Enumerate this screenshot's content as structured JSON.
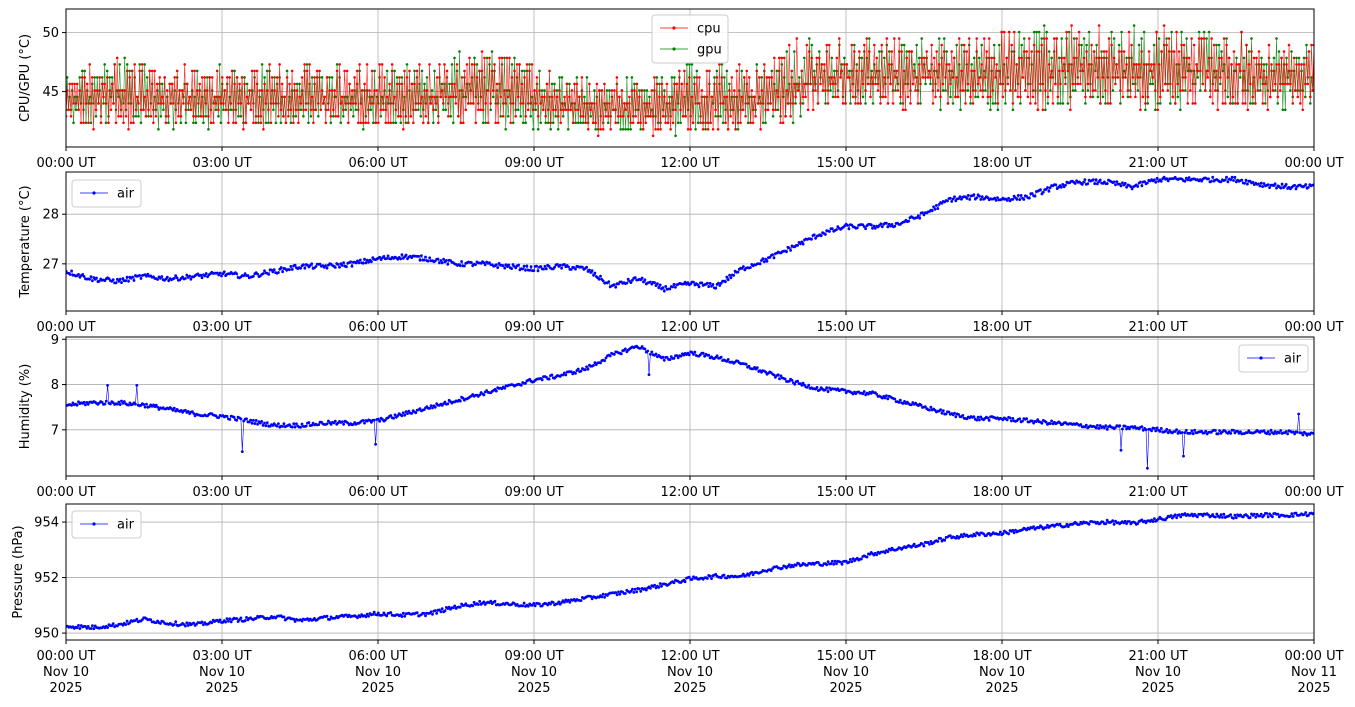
{
  "chart_data": [
    {
      "type": "line",
      "ylabel": "CPU/GPU (°C)",
      "ylim": [
        40.3,
        52.0
      ],
      "yticks": [
        45,
        50
      ],
      "grid": true,
      "legend": "top-center",
      "xlim": [
        "2025-11-10T00:00:00Z",
        "2025-11-11T00:00:00Z"
      ],
      "xtick_labels": [
        "00:00 UT",
        "03:00 UT",
        "06:00 UT",
        "09:00 UT",
        "12:00 UT",
        "15:00 UT",
        "18:00 UT",
        "21:00 UT",
        "00:00 UT"
      ],
      "series": [
        {
          "name": "cpu",
          "color": "#ff0000",
          "x_hours": [
            0.0,
            0.5,
            1.0,
            1.5,
            2.0,
            2.5,
            3.0,
            3.5,
            4.0,
            4.5,
            5.0,
            5.5,
            6.0,
            6.5,
            7.0,
            7.5,
            8.0,
            8.5,
            9.0,
            9.5,
            10.0,
            10.5,
            11.0,
            11.5,
            12.0,
            12.5,
            13.0,
            13.5,
            14.0,
            14.5,
            15.0,
            15.5,
            16.0,
            16.5,
            17.0,
            17.5,
            18.0,
            18.5,
            19.0,
            19.5,
            20.0,
            20.5,
            21.0,
            21.5,
            22.0,
            22.5,
            23.0,
            23.5,
            24.0
          ],
          "low": [
            41.9,
            42.0,
            42.0,
            42.0,
            41.9,
            42.0,
            42.0,
            42.0,
            42.0,
            42.0,
            42.0,
            42.0,
            42.0,
            42.0,
            42.0,
            42.0,
            42.0,
            42.0,
            41.9,
            41.8,
            41.4,
            41.3,
            41.3,
            41.3,
            41.4,
            41.4,
            41.8,
            42.0,
            42.2,
            43.3,
            43.6,
            43.6,
            43.6,
            43.6,
            43.6,
            43.6,
            43.6,
            43.6,
            43.6,
            43.6,
            43.6,
            43.6,
            43.6,
            43.6,
            43.6,
            43.6,
            43.6,
            43.6,
            43.6
          ],
          "high": [
            47.2,
            47.2,
            48.2,
            47.2,
            47.2,
            47.2,
            47.2,
            47.2,
            47.2,
            47.2,
            47.2,
            47.2,
            47.2,
            47.2,
            47.2,
            48.2,
            48.7,
            48.2,
            47.2,
            46.2,
            46.2,
            46.2,
            46.2,
            46.2,
            47.2,
            47.2,
            47.2,
            47.2,
            49.4,
            49.4,
            49.4,
            49.4,
            49.4,
            49.4,
            49.4,
            49.4,
            50.4,
            50.4,
            50.4,
            51.3,
            50.4,
            50.4,
            50.4,
            50.4,
            50.4,
            50.4,
            49.4,
            49.4,
            49.4
          ]
        },
        {
          "name": "gpu",
          "color": "#008000",
          "x_hours": [
            0.0,
            0.5,
            1.0,
            1.5,
            2.0,
            2.5,
            3.0,
            3.5,
            4.0,
            4.5,
            5.0,
            5.5,
            6.0,
            6.5,
            7.0,
            7.5,
            8.0,
            8.5,
            9.0,
            9.5,
            10.0,
            10.5,
            11.0,
            11.5,
            12.0,
            12.5,
            13.0,
            13.5,
            14.0,
            14.5,
            15.0,
            15.5,
            16.0,
            16.5,
            17.0,
            17.5,
            18.0,
            18.5,
            19.0,
            19.5,
            20.0,
            20.5,
            21.0,
            21.5,
            22.0,
            22.5,
            23.0,
            23.5,
            24.0
          ],
          "low": [
            41.9,
            42.0,
            42.0,
            42.0,
            41.9,
            42.0,
            42.0,
            42.0,
            42.0,
            42.0,
            42.0,
            42.0,
            42.0,
            42.0,
            42.0,
            42.0,
            42.0,
            42.0,
            41.9,
            41.8,
            41.4,
            41.3,
            41.3,
            41.3,
            41.4,
            41.4,
            41.8,
            42.0,
            42.2,
            43.3,
            43.6,
            43.6,
            43.6,
            43.6,
            43.6,
            43.6,
            43.6,
            43.6,
            43.6,
            43.6,
            43.6,
            43.6,
            43.6,
            43.6,
            43.6,
            43.6,
            43.6,
            43.6,
            43.6
          ],
          "high": [
            47.2,
            47.2,
            48.2,
            47.2,
            47.2,
            47.2,
            47.2,
            47.2,
            47.2,
            47.2,
            47.2,
            47.2,
            47.2,
            47.2,
            47.2,
            48.2,
            48.7,
            48.2,
            47.2,
            46.2,
            46.2,
            46.2,
            46.2,
            46.2,
            47.2,
            47.2,
            47.2,
            47.2,
            49.4,
            49.4,
            49.4,
            49.4,
            49.4,
            49.4,
            49.4,
            49.4,
            50.4,
            50.4,
            50.4,
            50.4,
            50.4,
            50.4,
            50.4,
            50.4,
            50.4,
            50.4,
            49.4,
            49.4,
            49.4
          ]
        }
      ]
    },
    {
      "type": "line",
      "ylabel": "Temperature (°C)",
      "ylim": [
        26.05,
        28.85
      ],
      "yticks": [
        27,
        28
      ],
      "grid": true,
      "legend": "top-left",
      "xlim": [
        "2025-11-10T00:00:00Z",
        "2025-11-11T00:00:00Z"
      ],
      "xtick_labels": [
        "00:00 UT",
        "03:00 UT",
        "06:00 UT",
        "09:00 UT",
        "12:00 UT",
        "15:00 UT",
        "18:00 UT",
        "21:00 UT",
        "00:00 UT"
      ],
      "series": [
        {
          "name": "air",
          "color": "#0000ff",
          "x_hours": [
            0.0,
            0.5,
            1.0,
            1.5,
            2.0,
            2.5,
            3.0,
            3.5,
            4.0,
            4.5,
            5.0,
            5.5,
            6.0,
            6.5,
            7.0,
            7.5,
            8.0,
            8.5,
            9.0,
            9.5,
            10.0,
            10.5,
            11.0,
            11.5,
            12.0,
            12.5,
            13.0,
            13.5,
            14.0,
            14.5,
            15.0,
            15.5,
            16.0,
            16.5,
            17.0,
            17.5,
            18.0,
            18.5,
            19.0,
            19.5,
            20.0,
            20.5,
            21.0,
            21.5,
            22.0,
            22.5,
            23.0,
            23.5,
            24.0
          ],
          "values": [
            26.85,
            26.7,
            26.65,
            26.75,
            26.7,
            26.75,
            26.8,
            26.75,
            26.85,
            26.95,
            26.95,
            27.0,
            27.1,
            27.15,
            27.1,
            27.0,
            27.0,
            26.95,
            26.9,
            26.95,
            26.9,
            26.55,
            26.7,
            26.5,
            26.6,
            26.55,
            26.9,
            27.1,
            27.35,
            27.6,
            27.75,
            27.75,
            27.8,
            28.0,
            28.3,
            28.35,
            28.3,
            28.35,
            28.55,
            28.65,
            28.65,
            28.55,
            28.7,
            28.7,
            28.7,
            28.7,
            28.6,
            28.55,
            28.55
          ]
        }
      ]
    },
    {
      "type": "line",
      "ylabel": "Humidity (%)",
      "ylim": [
        5.98,
        9.05
      ],
      "yticks": [
        7,
        8,
        9
      ],
      "grid": true,
      "legend": "top-right",
      "xlim": [
        "2025-11-10T00:00:00Z",
        "2025-11-11T00:00:00Z"
      ],
      "xtick_labels": [
        "00:00 UT",
        "03:00 UT",
        "06:00 UT",
        "09:00 UT",
        "12:00 UT",
        "15:00 UT",
        "18:00 UT",
        "21:00 UT",
        "00:00 UT"
      ],
      "series": [
        {
          "name": "air",
          "color": "#0000ff",
          "x_hours": [
            0.0,
            0.5,
            1.0,
            1.5,
            2.0,
            2.5,
            3.0,
            3.5,
            4.0,
            4.5,
            5.0,
            5.5,
            6.0,
            6.5,
            7.0,
            7.5,
            8.0,
            8.5,
            9.0,
            9.5,
            10.0,
            10.5,
            11.0,
            11.5,
            12.0,
            12.5,
            13.0,
            13.5,
            14.0,
            14.5,
            15.0,
            15.5,
            16.0,
            16.5,
            17.0,
            17.5,
            18.0,
            18.5,
            19.0,
            19.5,
            20.0,
            20.5,
            21.0,
            21.5,
            22.0,
            22.5,
            23.0,
            23.5,
            24.0
          ],
          "values": [
            7.55,
            7.6,
            7.6,
            7.55,
            7.45,
            7.35,
            7.3,
            7.2,
            7.1,
            7.1,
            7.15,
            7.15,
            7.2,
            7.35,
            7.5,
            7.65,
            7.8,
            7.95,
            8.1,
            8.2,
            8.35,
            8.65,
            8.85,
            8.55,
            8.7,
            8.6,
            8.45,
            8.25,
            8.05,
            7.9,
            7.85,
            7.8,
            7.65,
            7.5,
            7.35,
            7.25,
            7.25,
            7.2,
            7.15,
            7.1,
            7.05,
            7.05,
            7.0,
            6.95,
            6.95,
            6.95,
            6.95,
            6.95,
            6.9
          ],
          "dips": [
            [
              0.8,
              7.98
            ],
            [
              1.35,
              7.98
            ],
            [
              3.4,
              6.52
            ],
            [
              5.95,
              6.68
            ],
            [
              11.2,
              8.22
            ],
            [
              20.3,
              6.55
            ],
            [
              20.8,
              6.15
            ],
            [
              21.5,
              6.42
            ],
            [
              23.7,
              7.35
            ]
          ]
        }
      ]
    },
    {
      "type": "line",
      "ylabel": "Pressure (hPa)",
      "ylim": [
        949.75,
        954.65
      ],
      "yticks": [
        950,
        952,
        954
      ],
      "grid": true,
      "legend": "top-left",
      "xlim": [
        "2025-11-10T00:00:00Z",
        "2025-11-11T00:00:00Z"
      ],
      "xtick_labels": [
        "00:00 UT\nNov 10\n2025",
        "03:00 UT\nNov 10\n2025",
        "06:00 UT\nNov 10\n2025",
        "09:00 UT\nNov 10\n2025",
        "12:00 UT\nNov 10\n2025",
        "15:00 UT\nNov 10\n2025",
        "18:00 UT\nNov 10\n2025",
        "21:00 UT\nNov 10\n2025",
        "00:00 UT\nNov 11\n2025"
      ],
      "series": [
        {
          "name": "air",
          "color": "#0000ff",
          "x_hours": [
            0.0,
            0.5,
            1.0,
            1.5,
            2.0,
            2.5,
            3.0,
            3.5,
            4.0,
            4.5,
            5.0,
            5.5,
            6.0,
            6.5,
            7.0,
            7.5,
            8.0,
            8.5,
            9.0,
            9.5,
            10.0,
            10.5,
            11.0,
            11.5,
            12.0,
            12.5,
            13.0,
            13.5,
            14.0,
            14.5,
            15.0,
            15.5,
            16.0,
            16.5,
            17.0,
            17.5,
            18.0,
            18.5,
            19.0,
            19.5,
            20.0,
            20.5,
            21.0,
            21.5,
            22.0,
            22.5,
            23.0,
            23.5,
            24.0
          ],
          "values": [
            950.25,
            950.2,
            950.3,
            950.5,
            950.35,
            950.3,
            950.45,
            950.5,
            950.6,
            950.45,
            950.55,
            950.6,
            950.7,
            950.65,
            950.7,
            950.95,
            951.1,
            951.05,
            951.0,
            951.1,
            951.25,
            951.4,
            951.55,
            951.75,
            951.95,
            952.05,
            952.05,
            952.3,
            952.45,
            952.5,
            952.55,
            952.85,
            953.05,
            953.2,
            953.45,
            953.55,
            953.6,
            953.75,
            953.85,
            953.95,
            954.0,
            953.95,
            954.1,
            954.25,
            954.25,
            954.2,
            954.25,
            954.25,
            954.3
          ]
        }
      ]
    }
  ]
}
